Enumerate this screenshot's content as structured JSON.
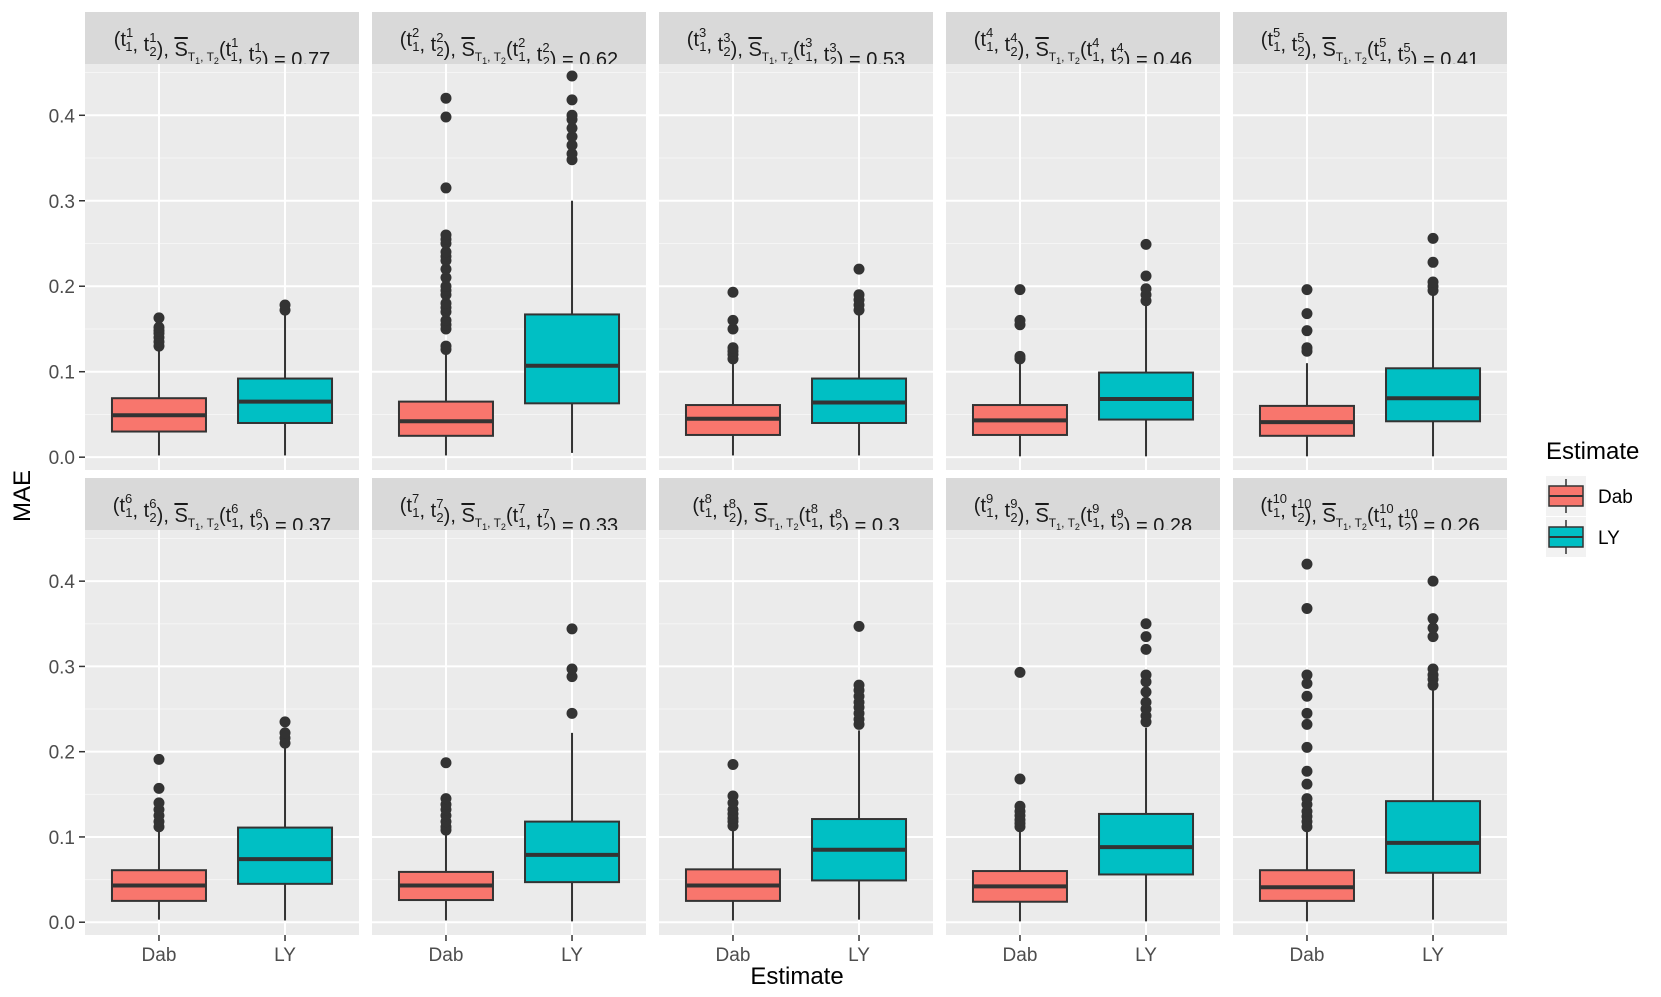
{
  "chart_data": {
    "type": "boxplot",
    "layout": "facet grid 2 rows x 5 columns",
    "xlabel": "Estimate",
    "ylabel": "MAE",
    "ylim": [
      -0.015,
      0.46
    ],
    "yticks": [
      0.0,
      0.1,
      0.2,
      0.3,
      0.4
    ],
    "ytick_labels": [
      "0.0",
      "0.1",
      "0.2",
      "0.3",
      "0.4"
    ],
    "categories": [
      "Dab",
      "LY"
    ],
    "legend": {
      "title": "Estimate",
      "position": "right",
      "entries": [
        {
          "label": "Dab",
          "color": "#F8766D"
        },
        {
          "label": "LY",
          "color": "#00BFC4"
        }
      ]
    },
    "colors": {
      "Dab": "#F8766D",
      "LY": "#00BFC4"
    },
    "panels": [
      {
        "strip": {
          "k": "1",
          "value": "0.77"
        },
        "boxes": [
          {
            "category": "Dab",
            "lower_whisker": 0.002,
            "q1": 0.03,
            "median": 0.049,
            "q3": 0.069,
            "upper_whisker": 0.127,
            "outliers": [
              0.13,
              0.135,
              0.14,
              0.145,
              0.148,
              0.152,
              0.163
            ]
          },
          {
            "category": "LY",
            "lower_whisker": 0.002,
            "q1": 0.04,
            "median": 0.065,
            "q3": 0.092,
            "upper_whisker": 0.168,
            "outliers": [
              0.172,
              0.178
            ]
          }
        ]
      },
      {
        "strip": {
          "k": "2",
          "value": "0.62"
        },
        "boxes": [
          {
            "category": "Dab",
            "lower_whisker": 0.002,
            "q1": 0.025,
            "median": 0.042,
            "q3": 0.065,
            "upper_whisker": 0.122,
            "outliers": [
              0.126,
              0.13,
              0.15,
              0.155,
              0.16,
              0.17,
              0.175,
              0.18,
              0.19,
              0.195,
              0.2,
              0.21,
              0.22,
              0.23,
              0.235,
              0.24,
              0.25,
              0.255,
              0.26,
              0.315,
              0.398,
              0.42
            ]
          },
          {
            "category": "LY",
            "lower_whisker": 0.005,
            "q1": 0.063,
            "median": 0.107,
            "q3": 0.167,
            "upper_whisker": 0.3,
            "outliers": [
              0.348,
              0.355,
              0.365,
              0.375,
              0.385,
              0.395,
              0.4,
              0.418,
              0.446
            ]
          }
        ]
      },
      {
        "strip": {
          "k": "3",
          "value": "0.53"
        },
        "boxes": [
          {
            "category": "Dab",
            "lower_whisker": 0.002,
            "q1": 0.026,
            "median": 0.045,
            "q3": 0.061,
            "upper_whisker": 0.11,
            "outliers": [
              0.115,
              0.12,
              0.124,
              0.128,
              0.15,
              0.16,
              0.193
            ]
          },
          {
            "category": "LY",
            "lower_whisker": 0.002,
            "q1": 0.04,
            "median": 0.064,
            "q3": 0.092,
            "upper_whisker": 0.168,
            "outliers": [
              0.172,
              0.178,
              0.184,
              0.19,
              0.22
            ]
          }
        ]
      },
      {
        "strip": {
          "k": "4",
          "value": "0.46"
        },
        "boxes": [
          {
            "category": "Dab",
            "lower_whisker": 0.001,
            "q1": 0.026,
            "median": 0.043,
            "q3": 0.061,
            "upper_whisker": 0.11,
            "outliers": [
              0.115,
              0.118,
              0.155,
              0.16,
              0.196
            ]
          },
          {
            "category": "LY",
            "lower_whisker": 0.001,
            "q1": 0.044,
            "median": 0.068,
            "q3": 0.099,
            "upper_whisker": 0.178,
            "outliers": [
              0.183,
              0.19,
              0.197,
              0.212,
              0.249
            ]
          }
        ]
      },
      {
        "strip": {
          "k": "5",
          "value": "0.41"
        },
        "boxes": [
          {
            "category": "Dab",
            "lower_whisker": 0.001,
            "q1": 0.025,
            "median": 0.041,
            "q3": 0.06,
            "upper_whisker": 0.11,
            "outliers": [
              0.124,
              0.128,
              0.148,
              0.168,
              0.196
            ]
          },
          {
            "category": "LY",
            "lower_whisker": 0.001,
            "q1": 0.042,
            "median": 0.069,
            "q3": 0.104,
            "upper_whisker": 0.19,
            "outliers": [
              0.195,
              0.2,
              0.205,
              0.228,
              0.256
            ]
          }
        ]
      },
      {
        "strip": {
          "k": "6",
          "value": "0.37"
        },
        "boxes": [
          {
            "category": "Dab",
            "lower_whisker": 0.003,
            "q1": 0.025,
            "median": 0.043,
            "q3": 0.061,
            "upper_whisker": 0.108,
            "outliers": [
              0.112,
              0.118,
              0.125,
              0.132,
              0.14,
              0.157,
              0.191
            ]
          },
          {
            "category": "LY",
            "lower_whisker": 0.002,
            "q1": 0.045,
            "median": 0.074,
            "q3": 0.111,
            "upper_whisker": 0.205,
            "outliers": [
              0.21,
              0.216,
              0.222,
              0.235
            ]
          }
        ]
      },
      {
        "strip": {
          "k": "7",
          "value": "0.33"
        },
        "boxes": [
          {
            "category": "Dab",
            "lower_whisker": 0.002,
            "q1": 0.026,
            "median": 0.043,
            "q3": 0.059,
            "upper_whisker": 0.105,
            "outliers": [
              0.108,
              0.112,
              0.118,
              0.125,
              0.132,
              0.138,
              0.145,
              0.187
            ]
          },
          {
            "category": "LY",
            "lower_whisker": 0.001,
            "q1": 0.047,
            "median": 0.079,
            "q3": 0.118,
            "upper_whisker": 0.222,
            "outliers": [
              0.245,
              0.288,
              0.297,
              0.344
            ]
          }
        ]
      },
      {
        "strip": {
          "k": "8",
          "value": "0.3"
        },
        "boxes": [
          {
            "category": "Dab",
            "lower_whisker": 0.002,
            "q1": 0.025,
            "median": 0.043,
            "q3": 0.062,
            "upper_whisker": 0.11,
            "outliers": [
              0.113,
              0.118,
              0.122,
              0.127,
              0.132,
              0.14,
              0.148,
              0.185
            ]
          },
          {
            "category": "LY",
            "lower_whisker": 0.003,
            "q1": 0.049,
            "median": 0.085,
            "q3": 0.121,
            "upper_whisker": 0.225,
            "outliers": [
              0.232,
              0.238,
              0.245,
              0.252,
              0.258,
              0.265,
              0.272,
              0.278,
              0.347
            ]
          }
        ]
      },
      {
        "strip": {
          "k": "9",
          "value": "0.28"
        },
        "boxes": [
          {
            "category": "Dab",
            "lower_whisker": 0.001,
            "q1": 0.024,
            "median": 0.042,
            "q3": 0.06,
            "upper_whisker": 0.108,
            "outliers": [
              0.112,
              0.116,
              0.12,
              0.125,
              0.13,
              0.136,
              0.168,
              0.293
            ]
          },
          {
            "category": "LY",
            "lower_whisker": 0.001,
            "q1": 0.056,
            "median": 0.088,
            "q3": 0.127,
            "upper_whisker": 0.228,
            "outliers": [
              0.235,
              0.242,
              0.25,
              0.258,
              0.27,
              0.282,
              0.29,
              0.32,
              0.335,
              0.35
            ]
          }
        ]
      },
      {
        "strip": {
          "k": "10",
          "value": "0.26"
        },
        "boxes": [
          {
            "category": "Dab",
            "lower_whisker": 0.001,
            "q1": 0.025,
            "median": 0.041,
            "q3": 0.061,
            "upper_whisker": 0.108,
            "outliers": [
              0.112,
              0.118,
              0.124,
              0.13,
              0.138,
              0.145,
              0.162,
              0.177,
              0.205,
              0.232,
              0.245,
              0.265,
              0.28,
              0.29,
              0.368,
              0.42
            ]
          },
          {
            "category": "LY",
            "lower_whisker": 0.003,
            "q1": 0.058,
            "median": 0.093,
            "q3": 0.142,
            "upper_whisker": 0.272,
            "outliers": [
              0.278,
              0.285,
              0.29,
              0.297,
              0.335,
              0.345,
              0.356,
              0.4
            ]
          }
        ]
      }
    ]
  }
}
